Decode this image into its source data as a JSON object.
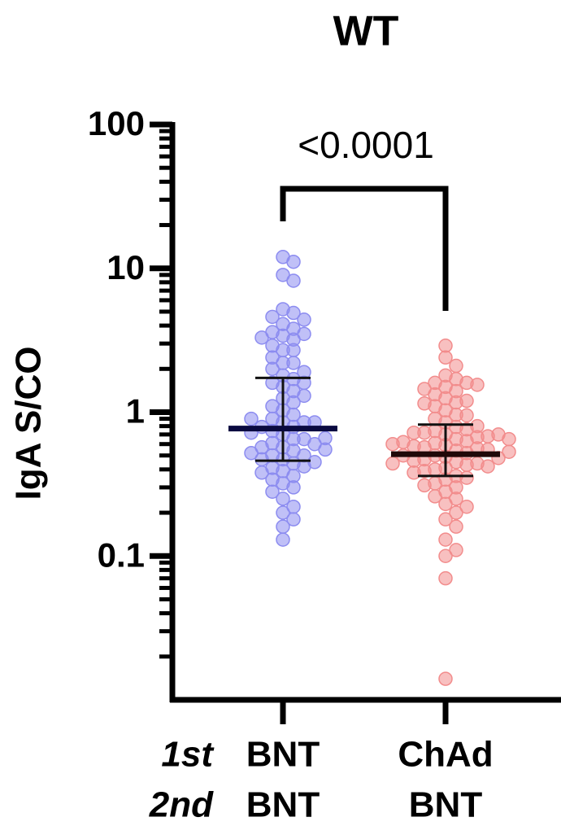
{
  "chart_data": {
    "type": "scatter",
    "title": "WT",
    "y_label": "IgA S/CO",
    "y_scale": "log",
    "ylim": [
      0.01,
      100
    ],
    "yticks": [
      0.1,
      1,
      10,
      100
    ],
    "yminorticks": [
      0.02,
      0.03,
      0.04,
      0.05,
      0.06,
      0.07,
      0.08,
      0.09,
      0.2,
      0.3,
      0.4,
      0.5,
      0.6,
      0.7,
      0.8,
      0.9,
      2,
      3,
      4,
      5,
      6,
      7,
      8,
      9,
      20,
      30,
      40,
      50,
      60,
      70,
      80,
      90
    ],
    "row_labels": [
      "1st",
      "2nd"
    ],
    "categories": [
      [
        "BNT",
        "BNT"
      ],
      [
        "ChAd",
        "BNT"
      ]
    ],
    "series": [
      {
        "color": "#8c8cf0",
        "median": 0.77,
        "upper": 1.73,
        "lower": 0.46,
        "values": [
          12.0,
          11.1,
          9.0,
          8.2,
          5.2,
          4.9,
          4.6,
          4.4,
          4.1,
          3.8,
          3.6,
          3.5,
          3.4,
          3.3,
          3.2,
          2.9,
          2.7,
          2.7,
          2.4,
          2.2,
          2.2,
          2.0,
          1.9,
          1.8,
          1.7,
          1.6,
          1.6,
          1.5,
          1.4,
          1.25,
          1.17,
          1.1,
          1.03,
          0.96,
          0.9,
          0.85,
          0.85,
          0.79,
          0.79,
          0.74,
          0.7,
          0.65,
          0.65,
          0.61,
          0.57,
          0.57,
          0.54,
          0.5,
          0.5,
          0.47,
          0.47,
          0.44,
          0.41,
          0.39,
          0.36,
          0.34,
          0.32,
          0.3,
          0.28,
          0.25,
          0.22,
          0.2,
          0.18,
          0.16,
          0.13,
          0.85,
          0.72,
          0.6,
          0.52,
          0.45,
          0.9,
          0.66,
          0.55,
          0.42,
          1.3,
          0.38
        ]
      },
      {
        "color": "#f28c8c",
        "median": 0.51,
        "upper": 0.82,
        "lower": 0.36,
        "values": [
          2.9,
          2.4,
          2.1,
          1.8,
          1.7,
          1.6,
          1.6,
          1.5,
          1.45,
          1.4,
          1.33,
          1.25,
          1.2,
          1.17,
          1.1,
          1.03,
          0.96,
          0.9,
          0.85,
          0.79,
          0.76,
          0.74,
          0.72,
          0.7,
          0.67,
          0.65,
          0.63,
          0.61,
          0.59,
          0.57,
          0.56,
          0.54,
          0.52,
          0.5,
          0.49,
          0.47,
          0.45,
          0.44,
          0.43,
          0.41,
          0.4,
          0.39,
          0.36,
          0.34,
          0.32,
          0.3,
          0.28,
          0.26,
          0.25,
          0.23,
          0.22,
          0.2,
          0.18,
          0.16,
          0.13,
          0.11,
          0.1,
          0.07,
          0.014,
          0.72,
          0.68,
          0.62,
          0.58,
          0.55,
          0.5,
          0.46,
          0.42,
          0.38,
          0.7,
          0.6,
          0.48,
          0.44,
          1.15,
          0.95,
          0.8,
          0.65,
          0.53,
          0.35,
          0.31,
          1.55
        ]
      }
    ],
    "annotation": "<0.0001"
  }
}
